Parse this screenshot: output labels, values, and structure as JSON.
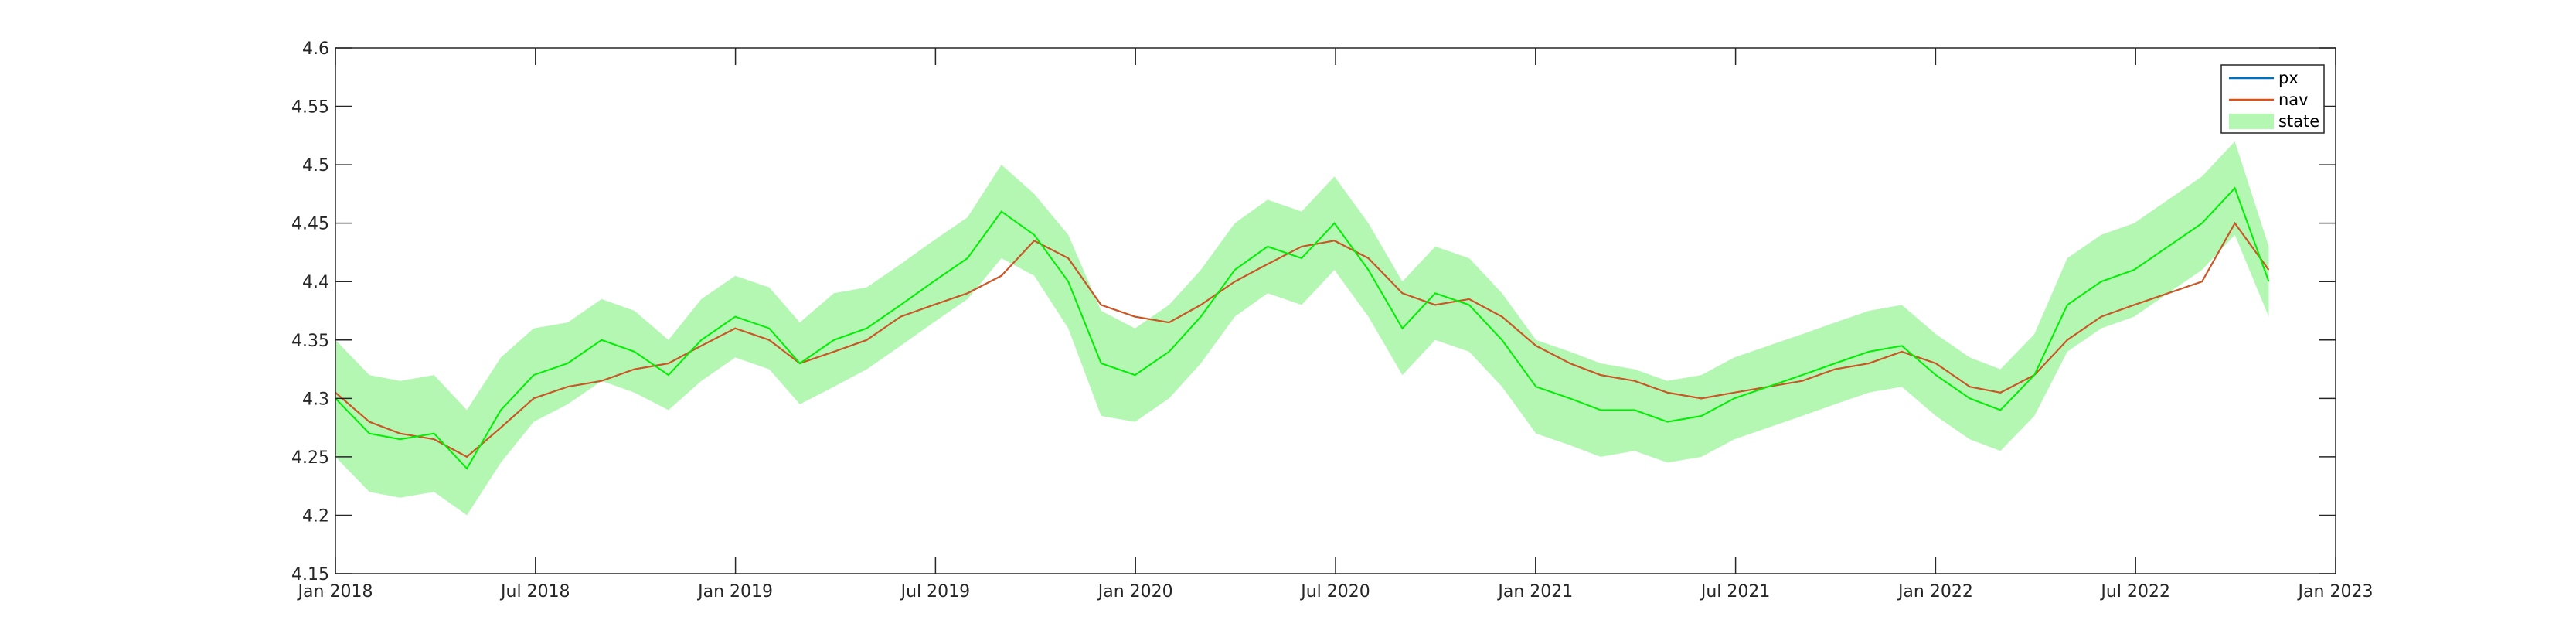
{
  "chart_data": {
    "type": "line",
    "title": "",
    "xlabel": "",
    "ylabel": "",
    "xlim": [
      "2018-01-01",
      "2023-01-01"
    ],
    "ylim": [
      4.15,
      4.6
    ],
    "x_ticks": [
      "Jan 2018",
      "Jul 2018",
      "Jan 2019",
      "Jul 2019",
      "Jan 2020",
      "Jul 2020",
      "Jan 2021",
      "Jul 2021",
      "Jan 2022",
      "Jul 2022",
      "Jan 2023"
    ],
    "y_ticks": [
      "4.15",
      "4.2",
      "4.25",
      "4.3",
      "4.35",
      "4.4",
      "4.45",
      "4.5",
      "4.55",
      "4.6"
    ],
    "grid": false,
    "legend_position": "top-right",
    "x": [
      "2018-01-01",
      "2018-02-01",
      "2018-03-01",
      "2018-04-01",
      "2018-05-01",
      "2018-06-01",
      "2018-07-01",
      "2018-08-01",
      "2018-09-01",
      "2018-10-01",
      "2018-11-01",
      "2018-12-01",
      "2019-01-01",
      "2019-02-01",
      "2019-03-01",
      "2019-04-01",
      "2019-05-01",
      "2019-06-01",
      "2019-07-01",
      "2019-08-01",
      "2019-09-01",
      "2019-10-01",
      "2019-11-01",
      "2019-12-01",
      "2020-01-01",
      "2020-02-01",
      "2020-03-01",
      "2020-04-01",
      "2020-05-01",
      "2020-06-01",
      "2020-07-01",
      "2020-08-01",
      "2020-09-01",
      "2020-10-01",
      "2020-11-01",
      "2020-12-01",
      "2021-01-01",
      "2021-02-01",
      "2021-03-01",
      "2021-04-01",
      "2021-05-01",
      "2021-06-01",
      "2021-07-01",
      "2021-08-01",
      "2021-09-01",
      "2021-10-01",
      "2021-11-01",
      "2021-12-01",
      "2022-01-01",
      "2022-02-01",
      "2022-03-01",
      "2022-04-01",
      "2022-05-01",
      "2022-06-01",
      "2022-07-01",
      "2022-08-01",
      "2022-09-01",
      "2022-10-01",
      "2022-11-01"
    ],
    "series": [
      {
        "name": "px",
        "kind": "line",
        "color": "#0072BD",
        "values": [
          4.305,
          4.28,
          4.27,
          4.265,
          4.25,
          4.275,
          4.3,
          4.31,
          4.315,
          4.325,
          4.33,
          4.345,
          4.36,
          4.35,
          4.33,
          4.34,
          4.35,
          4.37,
          4.38,
          4.39,
          4.405,
          4.435,
          4.42,
          4.38,
          4.37,
          4.365,
          4.38,
          4.4,
          4.415,
          4.43,
          4.435,
          4.42,
          4.39,
          4.38,
          4.385,
          4.37,
          4.345,
          4.33,
          4.32,
          4.315,
          4.305,
          4.3,
          4.305,
          4.31,
          4.315,
          4.325,
          4.33,
          4.34,
          4.33,
          4.31,
          4.305,
          4.32,
          4.35,
          4.37,
          4.38,
          4.39,
          4.4,
          4.45,
          4.41
        ]
      },
      {
        "name": "nav",
        "kind": "line",
        "color": "#D95319",
        "values": [
          4.305,
          4.28,
          4.27,
          4.265,
          4.25,
          4.275,
          4.3,
          4.31,
          4.315,
          4.325,
          4.33,
          4.345,
          4.36,
          4.35,
          4.33,
          4.34,
          4.35,
          4.37,
          4.38,
          4.39,
          4.405,
          4.435,
          4.42,
          4.38,
          4.37,
          4.365,
          4.38,
          4.4,
          4.415,
          4.43,
          4.435,
          4.42,
          4.39,
          4.38,
          4.385,
          4.37,
          4.345,
          4.33,
          4.32,
          4.315,
          4.305,
          4.3,
          4.305,
          4.31,
          4.315,
          4.325,
          4.33,
          4.34,
          4.33,
          4.31,
          4.305,
          4.32,
          4.35,
          4.37,
          4.38,
          4.39,
          4.4,
          4.45,
          4.41
        ]
      },
      {
        "name": "state",
        "kind": "band",
        "color": "#00EE00",
        "band_color": "#B3F7B3",
        "values": [
          4.3,
          4.27,
          4.265,
          4.27,
          4.24,
          4.29,
          4.32,
          4.33,
          4.35,
          4.34,
          4.32,
          4.35,
          4.37,
          4.36,
          4.33,
          4.35,
          4.36,
          4.38,
          4.4,
          4.42,
          4.46,
          4.44,
          4.4,
          4.33,
          4.32,
          4.34,
          4.37,
          4.41,
          4.43,
          4.42,
          4.45,
          4.41,
          4.36,
          4.39,
          4.38,
          4.35,
          4.31,
          4.3,
          4.29,
          4.29,
          4.28,
          4.285,
          4.3,
          4.31,
          4.32,
          4.33,
          4.34,
          4.345,
          4.32,
          4.3,
          4.29,
          4.32,
          4.38,
          4.4,
          4.41,
          4.43,
          4.45,
          4.48,
          4.4
        ],
        "band_lower": [
          4.25,
          4.22,
          4.215,
          4.22,
          4.2,
          4.245,
          4.28,
          4.295,
          4.315,
          4.305,
          4.29,
          4.315,
          4.335,
          4.325,
          4.295,
          4.31,
          4.325,
          4.345,
          4.365,
          4.385,
          4.42,
          4.405,
          4.36,
          4.285,
          4.28,
          4.3,
          4.33,
          4.37,
          4.39,
          4.38,
          4.41,
          4.37,
          4.32,
          4.35,
          4.34,
          4.31,
          4.27,
          4.26,
          4.25,
          4.255,
          4.245,
          4.25,
          4.265,
          4.275,
          4.285,
          4.295,
          4.305,
          4.31,
          4.285,
          4.265,
          4.255,
          4.285,
          4.34,
          4.36,
          4.37,
          4.39,
          4.41,
          4.44,
          4.37
        ],
        "band_upper": [
          4.35,
          4.32,
          4.315,
          4.32,
          4.29,
          4.335,
          4.36,
          4.365,
          4.385,
          4.375,
          4.35,
          4.385,
          4.405,
          4.395,
          4.365,
          4.39,
          4.395,
          4.415,
          4.435,
          4.455,
          4.5,
          4.475,
          4.44,
          4.375,
          4.36,
          4.38,
          4.41,
          4.45,
          4.47,
          4.46,
          4.49,
          4.45,
          4.4,
          4.43,
          4.42,
          4.39,
          4.35,
          4.34,
          4.33,
          4.325,
          4.315,
          4.32,
          4.335,
          4.345,
          4.355,
          4.365,
          4.375,
          4.38,
          4.355,
          4.335,
          4.325,
          4.355,
          4.42,
          4.44,
          4.45,
          4.47,
          4.49,
          4.52,
          4.43
        ]
      }
    ]
  }
}
